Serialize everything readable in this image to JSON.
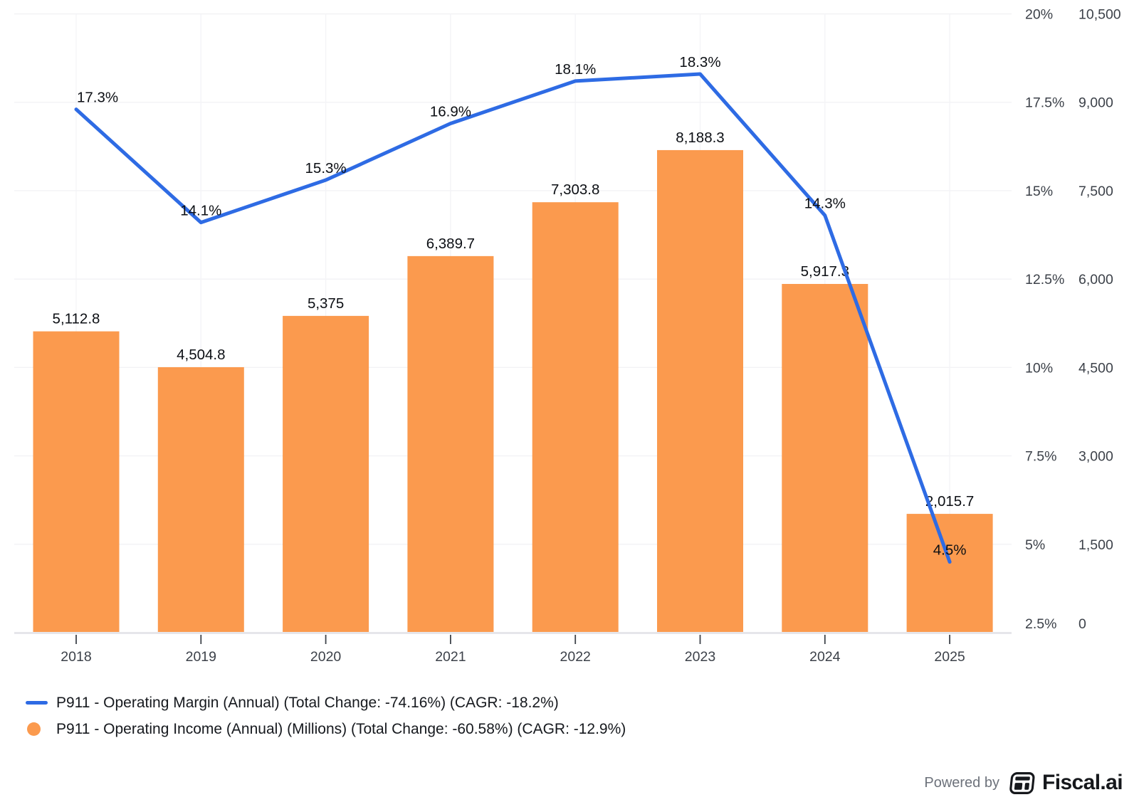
{
  "chart_data": {
    "type": "combo",
    "title": "",
    "xlabel": "",
    "ylabel": "",
    "categories": [
      "2018",
      "2019",
      "2020",
      "2021",
      "2022",
      "2023",
      "2024",
      "2025"
    ],
    "series": [
      {
        "name": "P911 - Operating Margin (Annual) (Total Change: -74.16%) (CAGR: -18.2%)",
        "type": "line",
        "axis": "percent",
        "color": "#2e6be4",
        "values": [
          17.3,
          14.1,
          15.3,
          16.9,
          18.1,
          18.3,
          14.3,
          4.5
        ],
        "point_labels": [
          "17.3%",
          "14.1%",
          "15.3%",
          "16.9%",
          "18.1%",
          "18.3%",
          "14.3%",
          "4.5%"
        ]
      },
      {
        "name": "P911 - Operating Income (Annual) (Millions) (Total Change: -60.58%) (CAGR: -12.9%)",
        "type": "bar",
        "axis": "value",
        "color": "#fb9a4e",
        "values": [
          5112.8,
          4504.8,
          5375,
          6389.7,
          7303.8,
          8188.3,
          5917.3,
          2015.7
        ],
        "point_labels": [
          "5,112.8",
          "4,504.8",
          "5,375",
          "6,389.7",
          "7,303.8",
          "8,188.3",
          "5,917.3",
          "2,015.7"
        ]
      }
    ],
    "percent_axis": {
      "min": 2.5,
      "max": 20,
      "tick_labels": [
        "20%",
        "17.5%",
        "15%",
        "12.5%",
        "10%",
        "7.5%",
        "5%",
        "2.5%"
      ]
    },
    "value_axis": {
      "min": 0,
      "max": 10500,
      "tick_labels": [
        "10,500",
        "9,000",
        "7,500",
        "6,000",
        "4,500",
        "3,000",
        "1,500",
        "0"
      ]
    },
    "grid": true,
    "legend_position": "bottom-left"
  },
  "footer": {
    "powered_by": "Powered by",
    "brand": "Fiscal.ai"
  }
}
